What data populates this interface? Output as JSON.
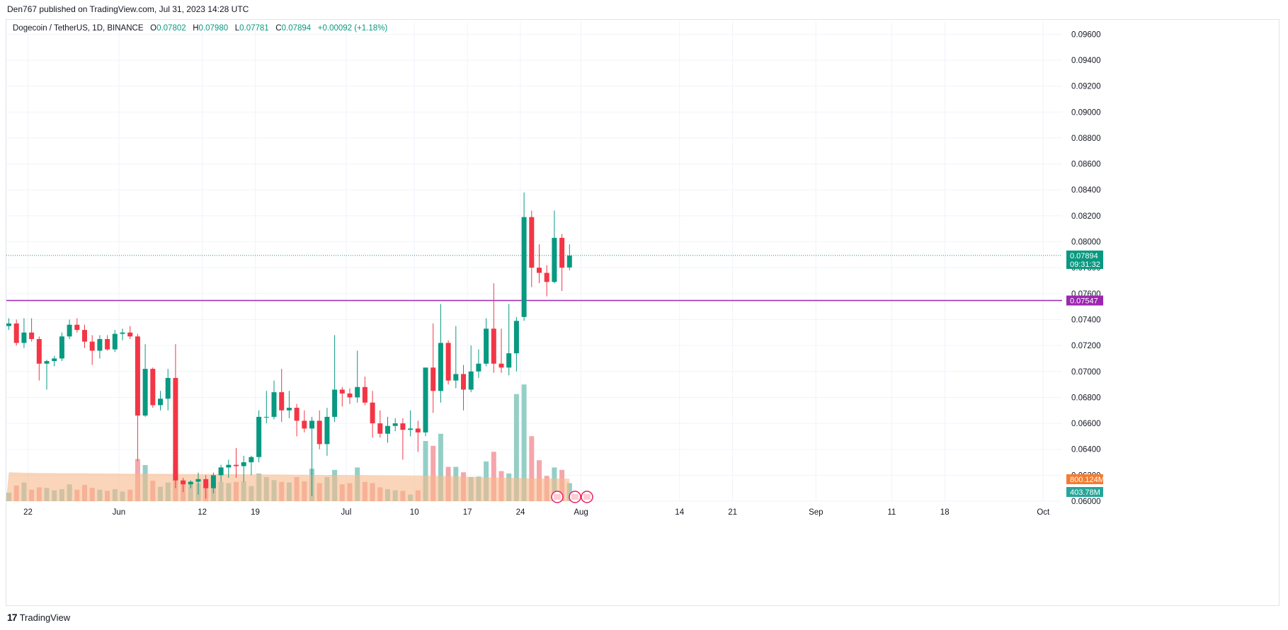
{
  "header": {
    "published": "Den767 published on TradingView.com, Jul 31, 2023 14:28 UTC"
  },
  "legend": {
    "symbol": "Dogecoin / TetherUS, 1D, BINANCE",
    "o_label": "O",
    "o": "0.07802",
    "h_label": "H",
    "h": "0.07980",
    "l_label": "L",
    "l": "0.07781",
    "c_label": "C",
    "c": "0.07894",
    "change": "+0.00092 (+1.18%)"
  },
  "footer": {
    "logo": "17",
    "brand": "TradingView"
  },
  "colors": {
    "up": "#089981",
    "down": "#f23645",
    "vol_up": "#94cfc6",
    "vol_down": "#f5a6ab",
    "vol_ma": "#f7b98b",
    "level": "#9c27b0",
    "badge_vol1": "#f57c30",
    "badge_vol2": "#26a69a"
  },
  "chart_data": {
    "type": "candlestick",
    "ylim": [
      0.06,
      0.097
    ],
    "yticks": [
      "0.09600",
      "0.09400",
      "0.09200",
      "0.09000",
      "0.08800",
      "0.08600",
      "0.08400",
      "0.08200",
      "0.08000",
      "0.07800",
      "0.07600",
      "0.07400",
      "0.07200",
      "0.07000",
      "0.06800",
      "0.06600",
      "0.06400",
      "0.06200",
      "0.06000"
    ],
    "xlabels": [
      "22",
      "Jun",
      "12",
      "19",
      "Jul",
      "10",
      "17",
      "24",
      "Aug",
      "14",
      "21",
      "Sep",
      "11",
      "18",
      "Oct"
    ],
    "horizontal_level": {
      "value": 0.07547,
      "label": "0.07547"
    },
    "last_price": {
      "value": 0.07894,
      "label": "0.07894",
      "countdown": "09:31:32"
    },
    "volume_labels": {
      "vol_ma": "800.124M",
      "vol": "403.78M"
    },
    "candles": [
      {
        "date": "2023-05-21",
        "o": 0.0735,
        "h": 0.0741,
        "l": 0.0732,
        "c": 0.0737,
        "v": 70
      },
      {
        "date": "2023-05-22",
        "o": 0.0737,
        "h": 0.074,
        "l": 0.072,
        "c": 0.0722,
        "v": 130
      },
      {
        "date": "2023-05-23",
        "o": 0.0722,
        "h": 0.0741,
        "l": 0.0718,
        "c": 0.073,
        "v": 155
      },
      {
        "date": "2023-05-24",
        "o": 0.073,
        "h": 0.0741,
        "l": 0.0723,
        "c": 0.0725,
        "v": 95
      },
      {
        "date": "2023-05-25",
        "o": 0.0725,
        "h": 0.0727,
        "l": 0.0693,
        "c": 0.0706,
        "v": 115
      },
      {
        "date": "2023-05-26",
        "o": 0.0706,
        "h": 0.0709,
        "l": 0.0686,
        "c": 0.0708,
        "v": 110
      },
      {
        "date": "2023-05-27",
        "o": 0.0708,
        "h": 0.0712,
        "l": 0.0704,
        "c": 0.071,
        "v": 90
      },
      {
        "date": "2023-05-28",
        "o": 0.071,
        "h": 0.073,
        "l": 0.0708,
        "c": 0.0727,
        "v": 100
      },
      {
        "date": "2023-05-29",
        "o": 0.0727,
        "h": 0.074,
        "l": 0.0725,
        "c": 0.0736,
        "v": 140
      },
      {
        "date": "2023-05-30",
        "o": 0.0736,
        "h": 0.0741,
        "l": 0.073,
        "c": 0.0732,
        "v": 95
      },
      {
        "date": "2023-05-31",
        "o": 0.0732,
        "h": 0.0736,
        "l": 0.0718,
        "c": 0.0723,
        "v": 135
      },
      {
        "date": "2023-06-01",
        "o": 0.0723,
        "h": 0.0728,
        "l": 0.0705,
        "c": 0.0716,
        "v": 110
      },
      {
        "date": "2023-06-02",
        "o": 0.0716,
        "h": 0.0728,
        "l": 0.071,
        "c": 0.0725,
        "v": 95
      },
      {
        "date": "2023-06-03",
        "o": 0.0725,
        "h": 0.0728,
        "l": 0.0716,
        "c": 0.0717,
        "v": 85
      },
      {
        "date": "2023-06-04",
        "o": 0.0717,
        "h": 0.0732,
        "l": 0.0715,
        "c": 0.0729,
        "v": 100
      },
      {
        "date": "2023-06-05",
        "o": 0.0729,
        "h": 0.0733,
        "l": 0.0724,
        "c": 0.073,
        "v": 80
      },
      {
        "date": "2023-06-06",
        "o": 0.073,
        "h": 0.0735,
        "l": 0.0725,
        "c": 0.0727,
        "v": 95
      },
      {
        "date": "2023-06-07",
        "o": 0.0727,
        "h": 0.0729,
        "l": 0.0631,
        "c": 0.0666,
        "v": 350
      },
      {
        "date": "2023-06-08",
        "o": 0.0666,
        "h": 0.0721,
        "l": 0.0665,
        "c": 0.0702,
        "v": 300
      },
      {
        "date": "2023-06-09",
        "o": 0.0702,
        "h": 0.0703,
        "l": 0.0672,
        "c": 0.0674,
        "v": 170
      },
      {
        "date": "2023-06-10",
        "o": 0.0674,
        "h": 0.0685,
        "l": 0.067,
        "c": 0.0679,
        "v": 120
      },
      {
        "date": "2023-06-11",
        "o": 0.0679,
        "h": 0.0702,
        "l": 0.067,
        "c": 0.0695,
        "v": 155
      },
      {
        "date": "2023-06-12",
        "o": 0.0695,
        "h": 0.0721,
        "l": 0.061,
        "c": 0.0616,
        "v": 320
      },
      {
        "date": "2023-06-13",
        "o": 0.0616,
        "h": 0.0618,
        "l": 0.0607,
        "c": 0.0613,
        "v": 160
      },
      {
        "date": "2023-06-14",
        "o": 0.0613,
        "h": 0.0616,
        "l": 0.061,
        "c": 0.0615,
        "v": 140
      },
      {
        "date": "2023-06-15",
        "o": 0.0615,
        "h": 0.0622,
        "l": 0.0605,
        "c": 0.0617,
        "v": 150
      },
      {
        "date": "2023-06-16",
        "o": 0.0617,
        "h": 0.062,
        "l": 0.0602,
        "c": 0.061,
        "v": 130
      },
      {
        "date": "2023-06-17",
        "o": 0.061,
        "h": 0.0622,
        "l": 0.0606,
        "c": 0.062,
        "v": 145
      },
      {
        "date": "2023-06-18",
        "o": 0.062,
        "h": 0.0628,
        "l": 0.0615,
        "c": 0.0626,
        "v": 160
      },
      {
        "date": "2023-06-19",
        "o": 0.0626,
        "h": 0.0632,
        "l": 0.0618,
        "c": 0.0628,
        "v": 150
      },
      {
        "date": "2023-06-20",
        "o": 0.0628,
        "h": 0.0641,
        "l": 0.0618,
        "c": 0.0627,
        "v": 160
      },
      {
        "date": "2023-06-21",
        "o": 0.0627,
        "h": 0.0635,
        "l": 0.0615,
        "c": 0.063,
        "v": 165
      },
      {
        "date": "2023-06-22",
        "o": 0.063,
        "h": 0.0635,
        "l": 0.062,
        "c": 0.0634,
        "v": 125
      },
      {
        "date": "2023-06-23",
        "o": 0.0634,
        "h": 0.067,
        "l": 0.063,
        "c": 0.0665,
        "v": 230
      },
      {
        "date": "2023-06-24",
        "o": 0.0665,
        "h": 0.0685,
        "l": 0.066,
        "c": 0.0665,
        "v": 200
      },
      {
        "date": "2023-06-25",
        "o": 0.0665,
        "h": 0.0693,
        "l": 0.0663,
        "c": 0.0684,
        "v": 175
      },
      {
        "date": "2023-06-26",
        "o": 0.0684,
        "h": 0.0702,
        "l": 0.0661,
        "c": 0.067,
        "v": 160
      },
      {
        "date": "2023-06-27",
        "o": 0.067,
        "h": 0.0685,
        "l": 0.0664,
        "c": 0.0672,
        "v": 155
      },
      {
        "date": "2023-06-28",
        "o": 0.0672,
        "h": 0.0675,
        "l": 0.065,
        "c": 0.0662,
        "v": 200
      },
      {
        "date": "2023-06-29",
        "o": 0.0662,
        "h": 0.067,
        "l": 0.0653,
        "c": 0.0656,
        "v": 165
      },
      {
        "date": "2023-06-30",
        "o": 0.0656,
        "h": 0.0665,
        "l": 0.0604,
        "c": 0.0662,
        "v": 270
      },
      {
        "date": "2023-07-01",
        "o": 0.0662,
        "h": 0.067,
        "l": 0.064,
        "c": 0.0644,
        "v": 150
      },
      {
        "date": "2023-07-02",
        "o": 0.0644,
        "h": 0.0672,
        "l": 0.0635,
        "c": 0.0665,
        "v": 200
      },
      {
        "date": "2023-07-03",
        "o": 0.0665,
        "h": 0.0728,
        "l": 0.0661,
        "c": 0.0686,
        "v": 260
      },
      {
        "date": "2023-07-04",
        "o": 0.0686,
        "h": 0.0688,
        "l": 0.0673,
        "c": 0.0683,
        "v": 140
      },
      {
        "date": "2023-07-05",
        "o": 0.0683,
        "h": 0.0687,
        "l": 0.0675,
        "c": 0.068,
        "v": 150
      },
      {
        "date": "2023-07-06",
        "o": 0.068,
        "h": 0.0716,
        "l": 0.0676,
        "c": 0.0688,
        "v": 280
      },
      {
        "date": "2023-07-07",
        "o": 0.0688,
        "h": 0.0696,
        "l": 0.0674,
        "c": 0.0676,
        "v": 160
      },
      {
        "date": "2023-07-08",
        "o": 0.0676,
        "h": 0.0685,
        "l": 0.0649,
        "c": 0.066,
        "v": 150
      },
      {
        "date": "2023-07-09",
        "o": 0.066,
        "h": 0.067,
        "l": 0.0649,
        "c": 0.0652,
        "v": 115
      },
      {
        "date": "2023-07-10",
        "o": 0.0652,
        "h": 0.0665,
        "l": 0.0645,
        "c": 0.0658,
        "v": 100
      },
      {
        "date": "2023-07-11",
        "o": 0.0658,
        "h": 0.0664,
        "l": 0.0654,
        "c": 0.066,
        "v": 90
      },
      {
        "date": "2023-07-12",
        "o": 0.066,
        "h": 0.0664,
        "l": 0.0632,
        "c": 0.0655,
        "v": 85
      },
      {
        "date": "2023-07-13",
        "o": 0.0655,
        "h": 0.067,
        "l": 0.065,
        "c": 0.0656,
        "v": 55
      },
      {
        "date": "2023-07-14",
        "o": 0.0656,
        "h": 0.0662,
        "l": 0.0638,
        "c": 0.0653,
        "v": 90
      },
      {
        "date": "2023-07-15",
        "o": 0.0653,
        "h": 0.07,
        "l": 0.065,
        "c": 0.0703,
        "v": 500
      },
      {
        "date": "2023-07-16",
        "o": 0.0703,
        "h": 0.0737,
        "l": 0.0668,
        "c": 0.0685,
        "v": 460
      },
      {
        "date": "2023-07-17",
        "o": 0.0685,
        "h": 0.0752,
        "l": 0.0676,
        "c": 0.0722,
        "v": 560
      },
      {
        "date": "2023-07-18",
        "o": 0.0722,
        "h": 0.0724,
        "l": 0.069,
        "c": 0.0693,
        "v": 285
      },
      {
        "date": "2023-07-19",
        "o": 0.0693,
        "h": 0.0735,
        "l": 0.0687,
        "c": 0.0698,
        "v": 285
      },
      {
        "date": "2023-07-20",
        "o": 0.0698,
        "h": 0.0705,
        "l": 0.067,
        "c": 0.0686,
        "v": 240
      },
      {
        "date": "2023-07-21",
        "o": 0.0686,
        "h": 0.072,
        "l": 0.0684,
        "c": 0.07,
        "v": 200
      },
      {
        "date": "2023-07-22",
        "o": 0.07,
        "h": 0.0717,
        "l": 0.0695,
        "c": 0.0706,
        "v": 205
      },
      {
        "date": "2023-07-23",
        "o": 0.0706,
        "h": 0.0741,
        "l": 0.0704,
        "c": 0.0733,
        "v": 330
      },
      {
        "date": "2023-07-24",
        "o": 0.0733,
        "h": 0.0768,
        "l": 0.0699,
        "c": 0.0706,
        "v": 410
      },
      {
        "date": "2023-07-25",
        "o": 0.0706,
        "h": 0.0733,
        "l": 0.0699,
        "c": 0.0703,
        "v": 250
      },
      {
        "date": "2023-07-26",
        "o": 0.0703,
        "h": 0.0752,
        "l": 0.0697,
        "c": 0.0714,
        "v": 230
      },
      {
        "date": "2023-07-27",
        "o": 0.0714,
        "h": 0.0742,
        "l": 0.07,
        "c": 0.0739,
        "v": 890
      },
      {
        "date": "2023-07-28",
        "o": 0.0742,
        "h": 0.0838,
        "l": 0.0739,
        "c": 0.0819,
        "v": 970
      },
      {
        "date": "2023-07-29",
        "o": 0.0819,
        "h": 0.0824,
        "l": 0.0765,
        "c": 0.078,
        "v": 540
      },
      {
        "date": "2023-07-30",
        "o": 0.078,
        "h": 0.0798,
        "l": 0.0768,
        "c": 0.0776,
        "v": 340
      },
      {
        "date": "2023-07-31",
        "o": 0.0776,
        "h": 0.0782,
        "l": 0.0758,
        "c": 0.0769,
        "v": 210
      },
      {
        "date": "2023-08-01",
        "o": 0.0769,
        "h": 0.0824,
        "l": 0.0768,
        "c": 0.0803,
        "v": 280
      },
      {
        "date": "2023-08-02",
        "o": 0.0803,
        "h": 0.0806,
        "l": 0.0762,
        "c": 0.078,
        "v": 260
      },
      {
        "date": "2023-08-03",
        "o": 0.07802,
        "h": 0.0798,
        "l": 0.07781,
        "c": 0.07894,
        "v": 150
      }
    ],
    "vol_ma": [
      240,
      238,
      236,
      235,
      234,
      234,
      233,
      233,
      232,
      232,
      232,
      231,
      231,
      230,
      230,
      229,
      229,
      228,
      228,
      228,
      227,
      227,
      226,
      226,
      226,
      225,
      225,
      225,
      224,
      224,
      224,
      223,
      223,
      222,
      222,
      221,
      221,
      220,
      220,
      219,
      219,
      218,
      218,
      218,
      217,
      217,
      216,
      216,
      215,
      215,
      214,
      214,
      213,
      212,
      212,
      211,
      210,
      209,
      207,
      206,
      204,
      203,
      201,
      199,
      197,
      196,
      194,
      193,
      191,
      190,
      189,
      188,
      188,
      188,
      187
    ]
  }
}
